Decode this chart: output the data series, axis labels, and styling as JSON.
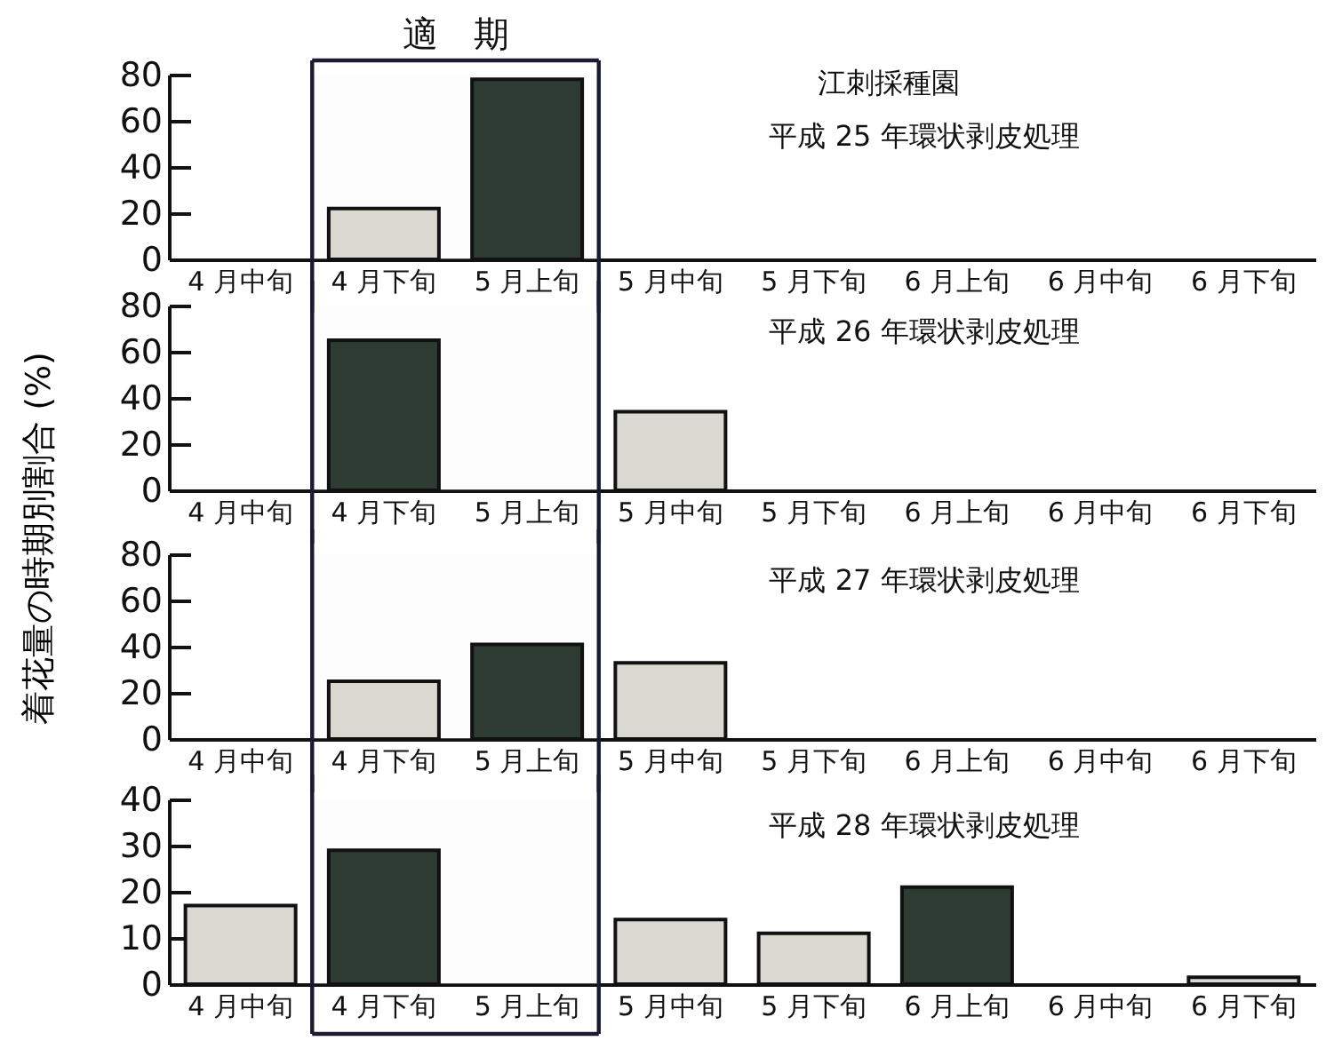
{
  "chart_data": [
    {
      "type": "bar",
      "ylabel": "着花量の時期別割合 (%)",
      "annotations": [
        "江刺採種園",
        "平成 25 年環状剥皮処理"
      ],
      "categories": [
        "4 月中旬",
        "4 月下旬",
        "5 月上旬",
        "5 月中旬",
        "5 月下旬",
        "6 月上旬",
        "6 月中旬",
        "6 月下旬"
      ],
      "values": [
        null,
        22,
        78,
        null,
        null,
        null,
        null,
        null
      ],
      "colors": [
        null,
        "#d9d9d2",
        "#2e3b33",
        null,
        null,
        null,
        null,
        null
      ],
      "ylim": [
        0,
        80
      ],
      "yticks": [
        0,
        20,
        40,
        60,
        80
      ],
      "bands": [
        {
          "axis": "x",
          "from": "4 月下旬",
          "to": "5 月上旬",
          "label": "適　期"
        }
      ]
    },
    {
      "type": "bar",
      "annotations": [
        "平成 26 年環状剥皮処理"
      ],
      "categories": [
        "4 月中旬",
        "4 月下旬",
        "5 月上旬",
        "5 月中旬",
        "5 月下旬",
        "6 月上旬",
        "6 月中旬",
        "6 月下旬"
      ],
      "values": [
        null,
        65,
        null,
        34,
        null,
        null,
        null,
        null
      ],
      "colors": [
        null,
        "#2e3b33",
        null,
        "#d9d9d2",
        null,
        null,
        null,
        null
      ],
      "ylim": [
        0,
        80
      ],
      "yticks": [
        0,
        20,
        40,
        60,
        80
      ],
      "bands": [
        {
          "axis": "x",
          "from": "4 月下旬",
          "to": "5 月上旬"
        }
      ]
    },
    {
      "type": "bar",
      "annotations": [
        "平成 27 年環状剥皮処理"
      ],
      "categories": [
        "4 月中旬",
        "4 月下旬",
        "5 月上旬",
        "5 月中旬",
        "5 月下旬",
        "6 月上旬",
        "6 月中旬",
        "6 月下旬"
      ],
      "values": [
        null,
        25,
        41,
        33,
        null,
        null,
        null,
        null
      ],
      "colors": [
        null,
        "#d9d9d2",
        "#2e3b33",
        "#d9d9d2",
        null,
        null,
        null,
        null
      ],
      "ylim": [
        0,
        80
      ],
      "yticks": [
        0,
        20,
        40,
        60,
        80
      ],
      "bands": [
        {
          "axis": "x",
          "from": "4 月下旬",
          "to": "5 月上旬"
        }
      ]
    },
    {
      "type": "bar",
      "annotations": [
        "平成 28 年環状剥皮処理"
      ],
      "categories": [
        "4 月中旬",
        "4 月下旬",
        "5 月上旬",
        "5 月中旬",
        "5 月下旬",
        "6 月上旬",
        "6 月中旬",
        "6 月下旬"
      ],
      "values": [
        17,
        29,
        null,
        14,
        11,
        21,
        null,
        1.5
      ],
      "colors": [
        "#d9d9d2",
        "#2e3b33",
        null,
        "#d9d9d2",
        "#d9d9d2",
        "#2e3b33",
        null,
        "#d9d9d2"
      ],
      "ylim": [
        0,
        40
      ],
      "yticks": [
        0,
        10,
        20,
        30,
        40
      ],
      "bands": [
        {
          "axis": "x",
          "from": "4 月下旬",
          "to": "5 月上旬"
        }
      ]
    }
  ]
}
